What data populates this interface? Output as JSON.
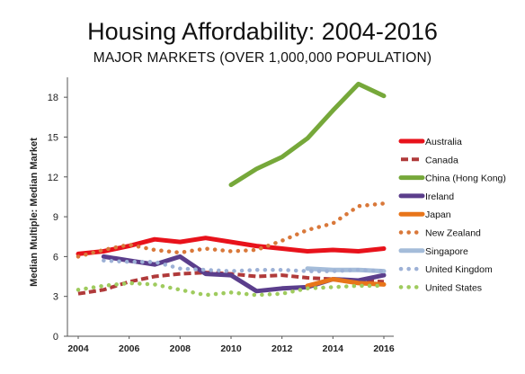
{
  "chart_data": {
    "type": "line",
    "title": "Housing Affordability: 2004-2016",
    "subtitle": "MAJOR MARKETS (OVER 1,000,000 POPULATION)",
    "xlabel": "",
    "ylabel": "Median Multiple: Median Market",
    "xlim": [
      2004,
      2016
    ],
    "ylim": [
      0,
      19.5
    ],
    "xticks": [
      "2004",
      "2006",
      "2008",
      "2010",
      "2012",
      "2014",
      "2016"
    ],
    "yticks": [
      "0",
      "3",
      "6",
      "9",
      "12",
      "15",
      "18"
    ],
    "grid": false,
    "legend_position": "right",
    "series": [
      {
        "name": "Australia",
        "color": "#e8121b",
        "style": "solid",
        "x": [
          2004,
          2005,
          2006,
          2007,
          2008,
          2009,
          2010,
          2011,
          2012,
          2013,
          2014,
          2015,
          2016
        ],
        "y": [
          6.2,
          6.4,
          6.8,
          7.3,
          7.1,
          7.4,
          7.1,
          6.8,
          6.6,
          6.4,
          6.5,
          6.4,
          6.6
        ]
      },
      {
        "name": "Canada",
        "color": "#b03a3a",
        "style": "dashed",
        "x": [
          2004,
          2005,
          2006,
          2007,
          2008,
          2009,
          2010,
          2011,
          2012,
          2013,
          2014,
          2015,
          2016
        ],
        "y": [
          3.2,
          3.5,
          4.1,
          4.5,
          4.7,
          4.8,
          4.7,
          4.5,
          4.6,
          4.4,
          4.3,
          4.2,
          4.1
        ]
      },
      {
        "name": "China (Hong Kong)",
        "color": "#76a83a",
        "style": "solid",
        "x": [
          2010,
          2011,
          2012,
          2013,
          2014,
          2015,
          2016
        ],
        "y": [
          11.4,
          12.6,
          13.5,
          14.9,
          17.0,
          19.0,
          18.1
        ]
      },
      {
        "name": "Ireland",
        "color": "#5b3e8c",
        "style": "solid",
        "x": [
          2005,
          2006,
          2007,
          2008,
          2009,
          2010,
          2011,
          2012,
          2013,
          2014,
          2015,
          2016
        ],
        "y": [
          6.0,
          5.7,
          5.4,
          6.0,
          4.7,
          4.6,
          3.4,
          3.6,
          3.7,
          4.3,
          4.2,
          4.6
        ]
      },
      {
        "name": "Japan",
        "color": "#e8751a",
        "style": "solid",
        "x": [
          2013,
          2014,
          2015,
          2016
        ],
        "y": [
          3.8,
          4.3,
          4.0,
          3.9
        ]
      },
      {
        "name": "New Zealand",
        "color": "#d9783a",
        "style": "dotted",
        "x": [
          2004,
          2005,
          2006,
          2007,
          2008,
          2009,
          2010,
          2011,
          2012,
          2013,
          2014,
          2015,
          2016
        ],
        "y": [
          6.0,
          6.5,
          6.9,
          6.5,
          6.3,
          6.6,
          6.4,
          6.5,
          7.2,
          8.0,
          8.5,
          9.8,
          10.0
        ]
      },
      {
        "name": "Singapore",
        "color": "#a4bcd9",
        "style": "solid",
        "x": [
          2013,
          2014,
          2015,
          2016
        ],
        "y": [
          5.1,
          5.0,
          5.0,
          4.9
        ]
      },
      {
        "name": "United Kingdom",
        "color": "#9db1d6",
        "style": "dotted",
        "x": [
          2005,
          2006,
          2007,
          2008,
          2009,
          2010,
          2011,
          2012,
          2013,
          2014,
          2015,
          2016
        ],
        "y": [
          5.7,
          5.6,
          5.6,
          5.1,
          5.0,
          4.9,
          5.0,
          5.0,
          4.9,
          4.9,
          5.0,
          4.9
        ]
      },
      {
        "name": "United States",
        "color": "#9fcb5e",
        "style": "dotted",
        "x": [
          2004,
          2005,
          2006,
          2007,
          2008,
          2009,
          2010,
          2011,
          2012,
          2013,
          2014,
          2015,
          2016
        ],
        "y": [
          3.5,
          3.8,
          4.0,
          3.9,
          3.5,
          3.1,
          3.3,
          3.1,
          3.2,
          3.6,
          3.7,
          3.8,
          3.8
        ]
      }
    ]
  }
}
